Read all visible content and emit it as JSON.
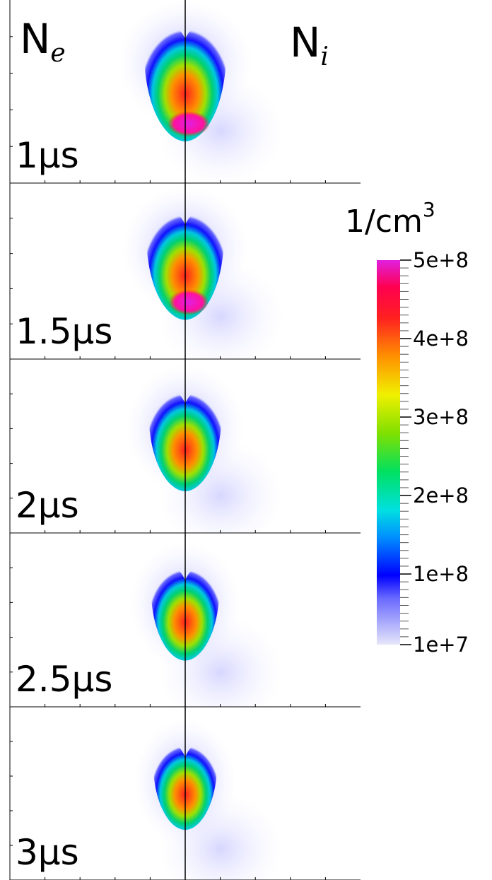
{
  "chart_data": {
    "type": "heatmap",
    "left_label": "N",
    "left_subscript": "e",
    "right_label": "N",
    "right_subscript": "i",
    "panels": [
      "1μs",
      "1.5μs",
      "2μs",
      "2.5μs",
      "3μs"
    ],
    "colorbar_label": "1/cm",
    "colorbar_label_superscript": "3",
    "clim": [
      10000000,
      500000000
    ],
    "cticks": [
      {
        "value": 10000000,
        "label": "1e+7"
      },
      {
        "value": 100000000,
        "label": "1e+8"
      },
      {
        "value": 200000000,
        "label": "2e+8"
      },
      {
        "value": 300000000,
        "label": "3e+8"
      },
      {
        "value": 400000000,
        "label": "4e+8"
      },
      {
        "value": 500000000,
        "label": "5e+8"
      }
    ]
  }
}
